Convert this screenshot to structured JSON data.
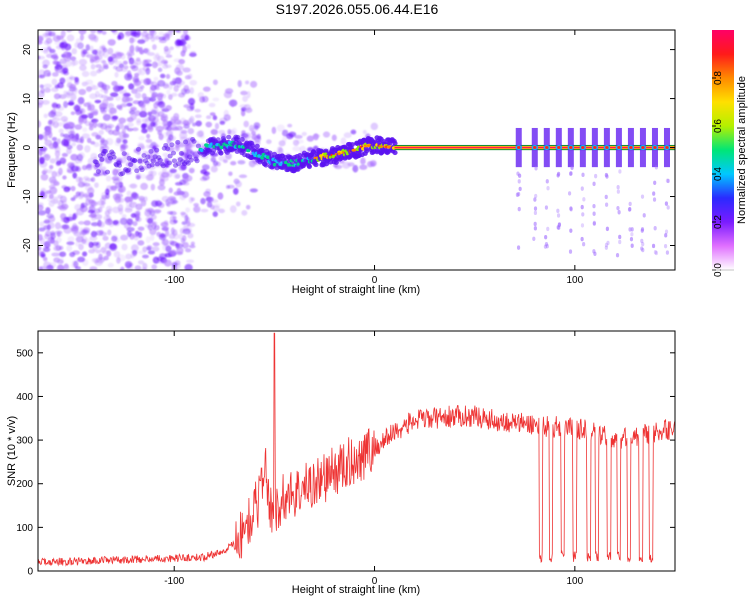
{
  "figure": {
    "title": "S197.2026.055.06.44.E16"
  },
  "chart_data": [
    {
      "type": "heatmap",
      "xlabel": "Height of straight line (km)",
      "ylabel": "Frequency (Hz)",
      "xlim": [
        -168,
        150
      ],
      "ylim": [
        -25,
        24
      ],
      "xticks": [
        -100,
        0,
        100
      ],
      "xtick_labels": [
        "-100",
        "0",
        "100"
      ],
      "yticks": [
        -20,
        -10,
        0,
        10,
        20
      ],
      "ytick_labels": [
        "-20",
        "-10",
        "0",
        "10",
        "20"
      ],
      "grid": false,
      "colorbar": {
        "label": "Normalized spectral amplitude",
        "range": [
          0,
          1
        ],
        "ticks": [
          0.0,
          0.2,
          0.4,
          0.6,
          0.8
        ],
        "tick_labels": [
          "0.0",
          "0.2",
          "0.4",
          "0.6",
          "0.8"
        ],
        "colors": [
          "#ffffff",
          "#e070ff",
          "#7a1cff",
          "#2a2aff",
          "#00c8ff",
          "#00e676",
          "#b4f000",
          "#ffe000",
          "#ff8a00",
          "#ff1a1a",
          "#ff0066"
        ]
      },
      "frequency_track": [
        [
          -130,
          -3.2
        ],
        [
          -120,
          -2.5
        ],
        [
          -100,
          -1.5
        ],
        [
          -85,
          0.0
        ],
        [
          -75,
          0.5
        ],
        [
          -68,
          0.6
        ],
        [
          -60,
          -1.0
        ],
        [
          -50,
          -3.0
        ],
        [
          -40,
          -3.2
        ],
        [
          -30,
          -2.2
        ],
        [
          -20,
          -1.5
        ],
        [
          -10,
          -0.5
        ],
        [
          -5,
          0.3
        ],
        [
          0,
          0.5
        ],
        [
          5,
          0.2
        ],
        [
          10,
          0.0
        ],
        [
          150,
          0.0
        ]
      ],
      "stable_carrier_range": [
        10,
        150
      ],
      "dropout_spikes_x": [
        72,
        80,
        86,
        92,
        98,
        104,
        110,
        116,
        122,
        128,
        134,
        140,
        146
      ]
    },
    {
      "type": "line",
      "xlabel": "Height of straight line (km)",
      "ylabel": "SNR (10 * v/v)",
      "xlim": [
        -168,
        150
      ],
      "ylim": [
        0,
        550
      ],
      "xticks": [
        -100,
        0,
        100
      ],
      "xtick_labels": [
        "-100",
        "0",
        "100"
      ],
      "yticks": [
        0,
        100,
        200,
        300,
        400,
        500
      ],
      "ytick_labels": [
        "0",
        "100",
        "200",
        "300",
        "400",
        "500"
      ],
      "grid": false,
      "series": [
        {
          "color": "#ee3333",
          "x": [
            -168,
            -150,
            -130,
            -110,
            -95,
            -85,
            -75,
            -65,
            -58,
            -55,
            -52,
            -48,
            -45,
            -35,
            -25,
            -15,
            -5,
            0,
            10,
            20,
            30,
            40,
            50,
            60,
            70,
            80,
            90,
            100,
            110,
            120,
            130,
            140,
            150
          ],
          "values": [
            20,
            22,
            25,
            28,
            30,
            32,
            45,
            90,
            160,
            250,
            140,
            150,
            170,
            190,
            215,
            240,
            270,
            280,
            320,
            345,
            350,
            355,
            355,
            345,
            340,
            335,
            330,
            328,
            320,
            300,
            310,
            315,
            330
          ],
          "spike": {
            "x": -50,
            "value": 545
          },
          "dropouts_x": [
            83,
            88,
            94,
            100,
            107,
            111,
            117,
            122,
            127,
            133,
            138
          ]
        }
      ]
    }
  ]
}
